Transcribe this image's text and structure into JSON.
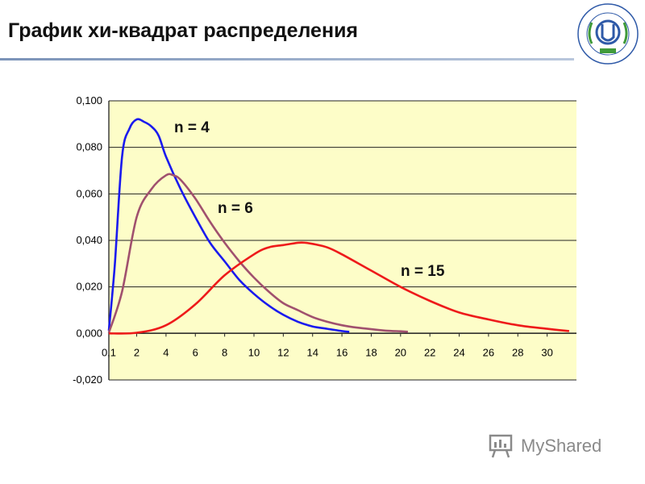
{
  "slide": {
    "title": "График хи-квадрат распределения"
  },
  "watermark": {
    "text": "MyShared"
  },
  "colors": {
    "plot_background": "#fdfdc8",
    "grid": "#222222",
    "n4": "#1a1aee",
    "n6": "#a0506e",
    "n15": "#ee1a1a"
  },
  "chart_data": {
    "type": "line",
    "title": "",
    "xlabel": "",
    "ylabel": "",
    "xlim": [
      0.1,
      32
    ],
    "ylim": [
      -0.02,
      0.1
    ],
    "grid": true,
    "x_tick_labels": [
      "0,1",
      "2",
      "4",
      "6",
      "8",
      "10",
      "12",
      "14",
      "16",
      "18",
      "20",
      "22",
      "24",
      "26",
      "28",
      "30"
    ],
    "y_tick_labels": [
      "0,100",
      "0,080",
      "0,060",
      "0,040",
      "0,020",
      "0,000",
      "-0,020"
    ],
    "series": [
      {
        "name": "n = 4",
        "color": "#1a1aee",
        "x": [
          0.1,
          0.5,
          1,
          1.5,
          2,
          2.5,
          3,
          3.5,
          4,
          5,
          6,
          7,
          8,
          9,
          10,
          11,
          12,
          13,
          14,
          15,
          16,
          16.5
        ],
        "y": [
          0.0012,
          0.029,
          0.076,
          0.088,
          0.092,
          0.091,
          0.089,
          0.085,
          0.076,
          0.062,
          0.05,
          0.039,
          0.031,
          0.023,
          0.017,
          0.012,
          0.008,
          0.005,
          0.003,
          0.002,
          0.001,
          0.0007
        ]
      },
      {
        "name": "n = 6",
        "color": "#a0506e",
        "x": [
          0.1,
          1,
          2,
          3,
          4,
          4.5,
          5,
          6,
          7,
          8,
          9,
          10,
          11,
          12,
          13,
          14,
          15,
          16,
          17,
          18,
          19,
          20,
          20.5
        ],
        "y": [
          0.0003,
          0.018,
          0.05,
          0.062,
          0.068,
          0.068,
          0.066,
          0.058,
          0.048,
          0.039,
          0.031,
          0.024,
          0.018,
          0.013,
          0.01,
          0.007,
          0.005,
          0.0035,
          0.0025,
          0.0018,
          0.0012,
          0.0009,
          0.0007
        ]
      },
      {
        "name": "n = 15",
        "color": "#ee1a1a",
        "x": [
          0.1,
          2,
          4,
          6,
          8,
          10,
          11,
          12,
          13,
          13.5,
          14,
          15,
          16,
          18,
          20,
          22,
          24,
          26,
          28,
          30,
          31.5
        ],
        "y": [
          0.0,
          0.0003,
          0.0035,
          0.0125,
          0.025,
          0.034,
          0.037,
          0.038,
          0.039,
          0.039,
          0.0385,
          0.037,
          0.034,
          0.027,
          0.02,
          0.014,
          0.009,
          0.006,
          0.0035,
          0.002,
          0.001
        ]
      }
    ]
  }
}
